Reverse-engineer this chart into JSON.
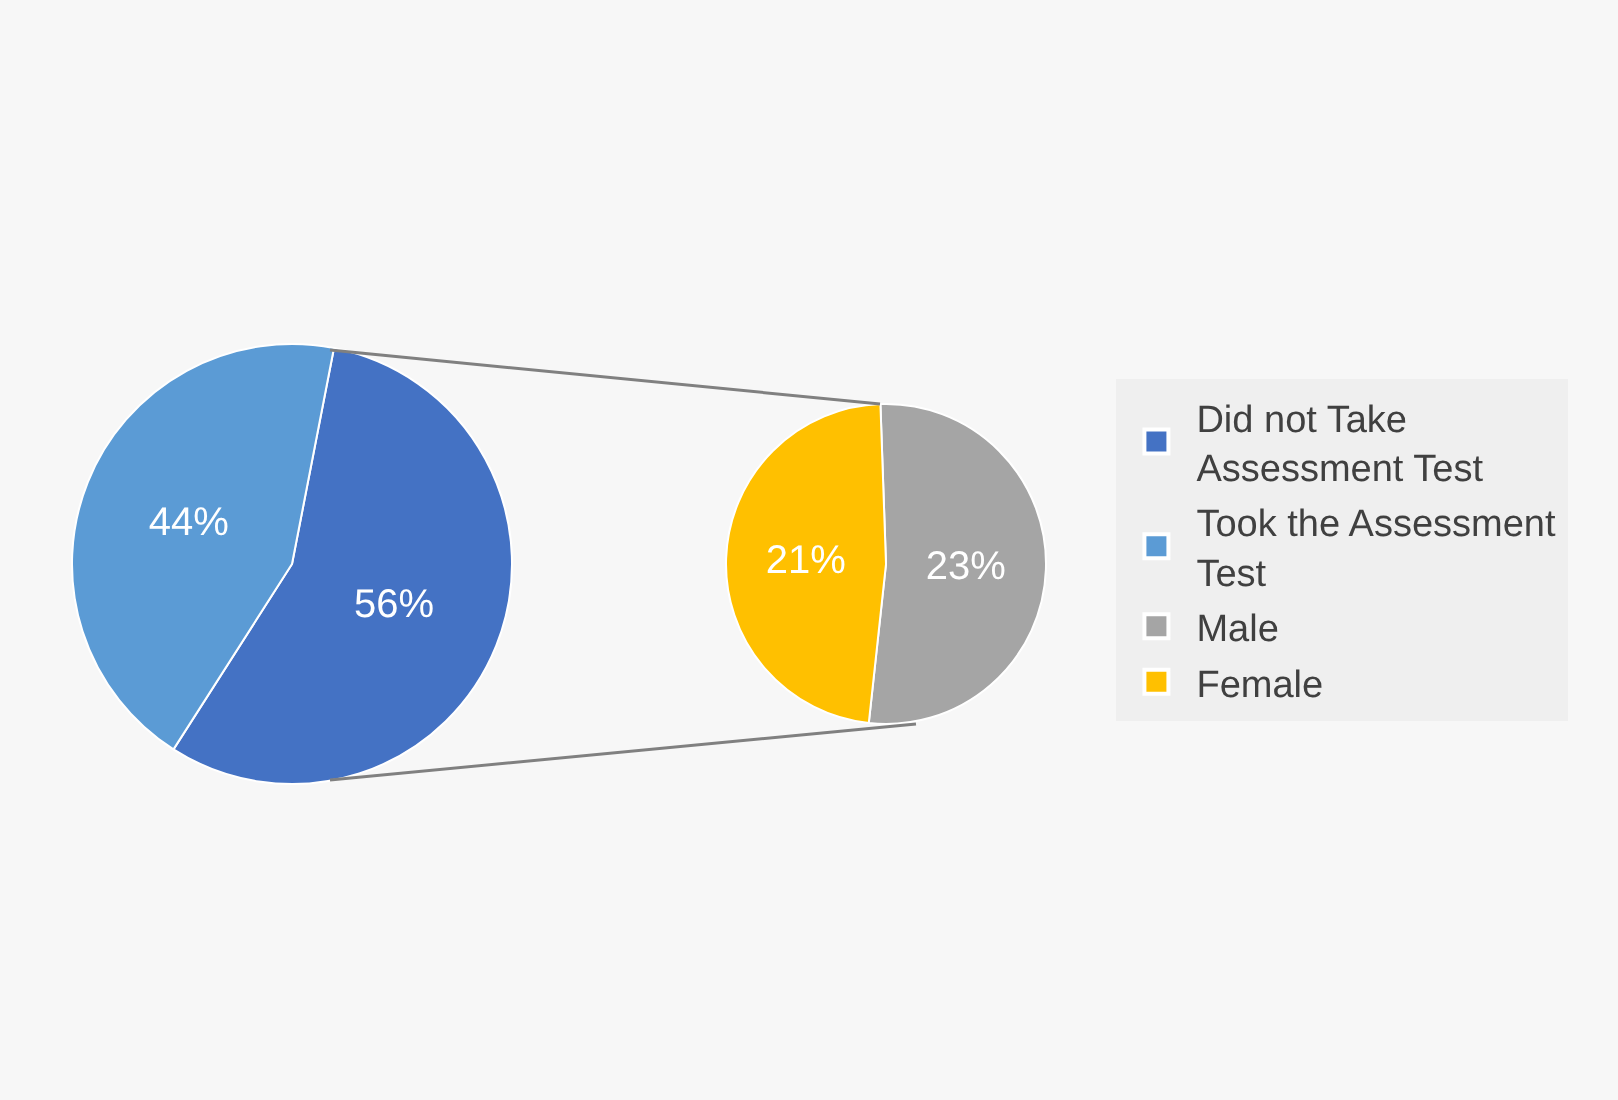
{
  "chart_data": [
    {
      "type": "pie",
      "categories": [
        "Did not Take Assessment Test",
        "Took the Assessment Test"
      ],
      "values": [
        56,
        44
      ],
      "colors": [
        "#4472c4",
        "#5b9bd5"
      ],
      "value_labels": [
        "56%",
        "44%"
      ],
      "legend": "right"
    },
    {
      "type": "pie",
      "categories": [
        "Male",
        "Female"
      ],
      "values": [
        23,
        21
      ],
      "colors": [
        "#a5a5a5",
        "#ffc000"
      ],
      "value_labels": [
        "23%",
        "21%"
      ],
      "legend": "right"
    }
  ]
}
